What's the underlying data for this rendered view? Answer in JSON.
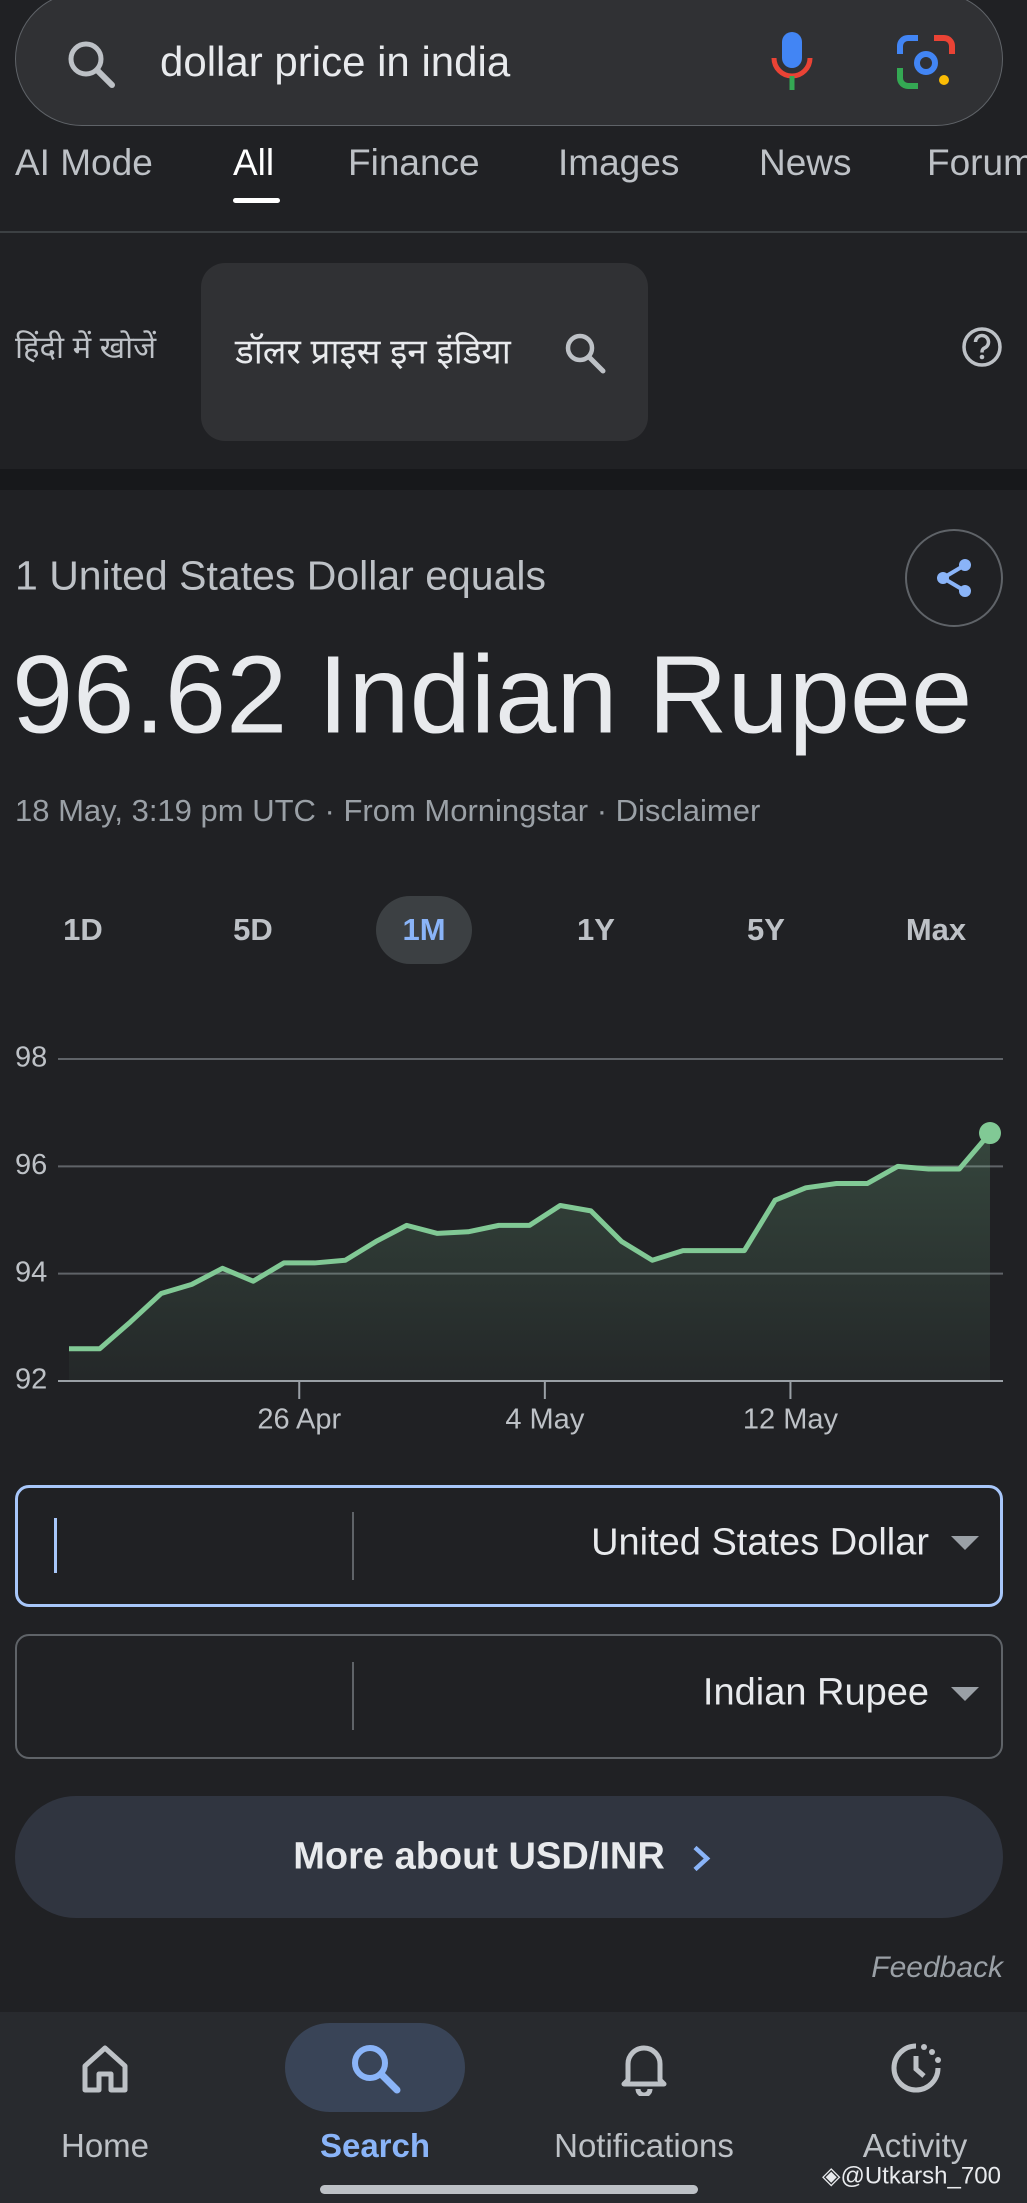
{
  "search": {
    "query": "dollar price in india"
  },
  "tabs": {
    "items": [
      "AI Mode",
      "All",
      "Finance",
      "Images",
      "News",
      "Forum"
    ],
    "selected": 1
  },
  "hindi": {
    "label": "हिंदी में खोजें",
    "query": "डॉलर प्राइस इन इंडिया"
  },
  "converter": {
    "heading": "1 United States Dollar equals",
    "result": "96.62 Indian Rupee",
    "source": "18 May, 3:19 pm UTC · From Morningstar · Disclaimer",
    "ranges": {
      "items": [
        "1D",
        "5D",
        "1M",
        "1Y",
        "5Y",
        "Max"
      ],
      "selected": 2
    },
    "chart": {
      "type": "line",
      "color": "#81c995",
      "values": [
        92.6,
        92.6,
        93.1,
        93.63,
        93.8,
        94.1,
        93.86,
        94.2,
        94.2,
        94.25,
        94.6,
        94.9,
        94.75,
        94.78,
        94.9,
        94.9,
        95.27,
        95.17,
        94.6,
        94.25,
        94.43,
        94.43,
        94.43,
        95.37,
        95.6,
        95.68,
        95.68,
        96.0,
        95.95,
        95.95,
        96.62
      ],
      "xlim": [
        0,
        30
      ],
      "xticks": [
        {
          "value": 7.5,
          "label": "26 Apr"
        },
        {
          "value": 15.5,
          "label": "4 May"
        },
        {
          "value": 23.5,
          "label": "12 May"
        }
      ],
      "ylim": [
        92,
        98
      ],
      "yticks": [
        92,
        94,
        96,
        98
      ],
      "grid": true
    },
    "from_currency": "United States Dollar",
    "to_currency": "Indian Rupee",
    "more": "More about USD/INR",
    "feedback": "Feedback"
  },
  "nav": {
    "items": [
      "Home",
      "Search",
      "Notifications",
      "Activity"
    ],
    "selected": 1
  },
  "watermark": "@Utkarsh_700"
}
